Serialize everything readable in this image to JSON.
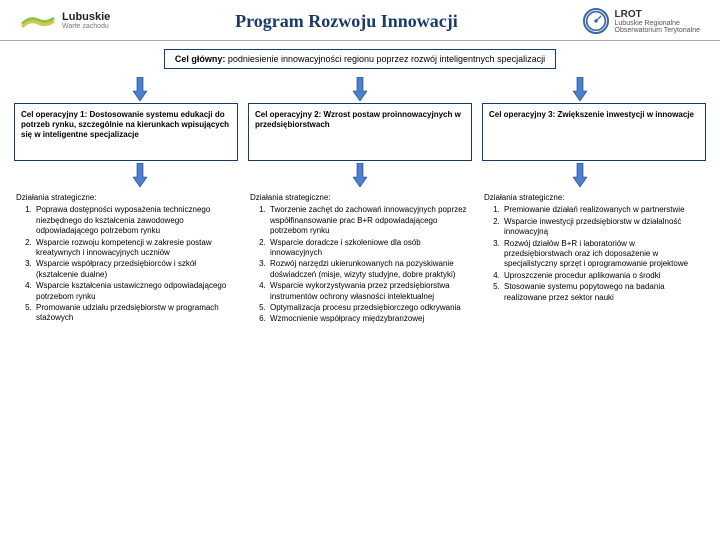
{
  "colors": {
    "border": "#1a3a6b",
    "arrow_fill": "#4a7fd1",
    "arrow_stroke": "#1a3a6b",
    "text": "#222222",
    "bg": "#ffffff",
    "logo_green": "#8bc34a",
    "logo_yellow": "#d4c84a",
    "logo_blue": "#3866a6"
  },
  "header": {
    "left_name": "Lubuskie",
    "left_tagline": "Warte zachodu",
    "title": "Program Rozwoju Innowacji",
    "right_line1": "Lubuskie Regionalne",
    "right_line2": "Obserwatorium Terytorialne",
    "right_abbrev": "LROT"
  },
  "main_goal": {
    "label": "Cel główny:",
    "text": " podniesienie innowacyjności regionu poprzez rozwój inteligentnych specjalizacji"
  },
  "columns": [
    {
      "op_label": "Cel operacyjny 1:",
      "op_text": " Dostosowanie systemu edukacji do potrzeb rynku, szczególnie na kierunkach wpisujących się w inteligentne specjalizacje",
      "actions_title": "Działania strategiczne:",
      "actions": [
        "Poprawa dostępności wyposażenia technicznego niezbędnego do kształcenia zawodowego odpowiadającego potrzebom rynku",
        "Wsparcie rozwoju kompetencji w zakresie postaw kreatywnych i innowacyjnych uczniów",
        "Wsparcie współpracy przedsiębiorców i szkół (kształcenie dualne)",
        "Wsparcie kształcenia ustawicznego odpowiadającego potrzebom rynku",
        "Promowanie udziału przedsiębiorstw w programach stażowych"
      ]
    },
    {
      "op_label": "Cel operacyjny 2:",
      "op_text": " Wzrost postaw proinnowacyjnych w przedsiębiorstwach",
      "actions_title": "Działania strategiczne:",
      "actions": [
        "Tworzenie zachęt do zachowań innowacyjnych poprzez współfinansowanie prac B+R odpowiadającego potrzebom rynku",
        "Wsparcie doradcze i szkoleniowe dla osób innowacyjnych",
        "Rozwój narzędzi ukierunkowanych na pozyskiwanie doświadczeń (misje, wizyty studyjne, dobre praktyki)",
        "Wsparcie wykorzystywania przez przedsiębiorstwa instrumentów ochrony własności intelektualnej",
        "Optymalizacja procesu przedsiębiorczego odkrywania",
        "Wzmocnienie współpracy międzybranżowej"
      ]
    },
    {
      "op_label": "Cel operacyjny 3:",
      "op_text": " Zwiększenie inwestycji w innowacje",
      "actions_title": "Działania strategiczne:",
      "actions": [
        "Premiowanie działań realizowanych w partnerstwie",
        "Wsparcie inwestycji przedsiębiorstw w działalność innowacyjną",
        "Rozwój działów B+R i laboratoriów w przedsiębiorstwach oraz ich doposażenie w specjalistyczny sprzęt i oprogramowanie projektowe",
        "Uproszczenie procedur aplikowania o środki",
        "Stosowanie systemu popytowego na badania realizowane przez sektor nauki"
      ]
    }
  ]
}
